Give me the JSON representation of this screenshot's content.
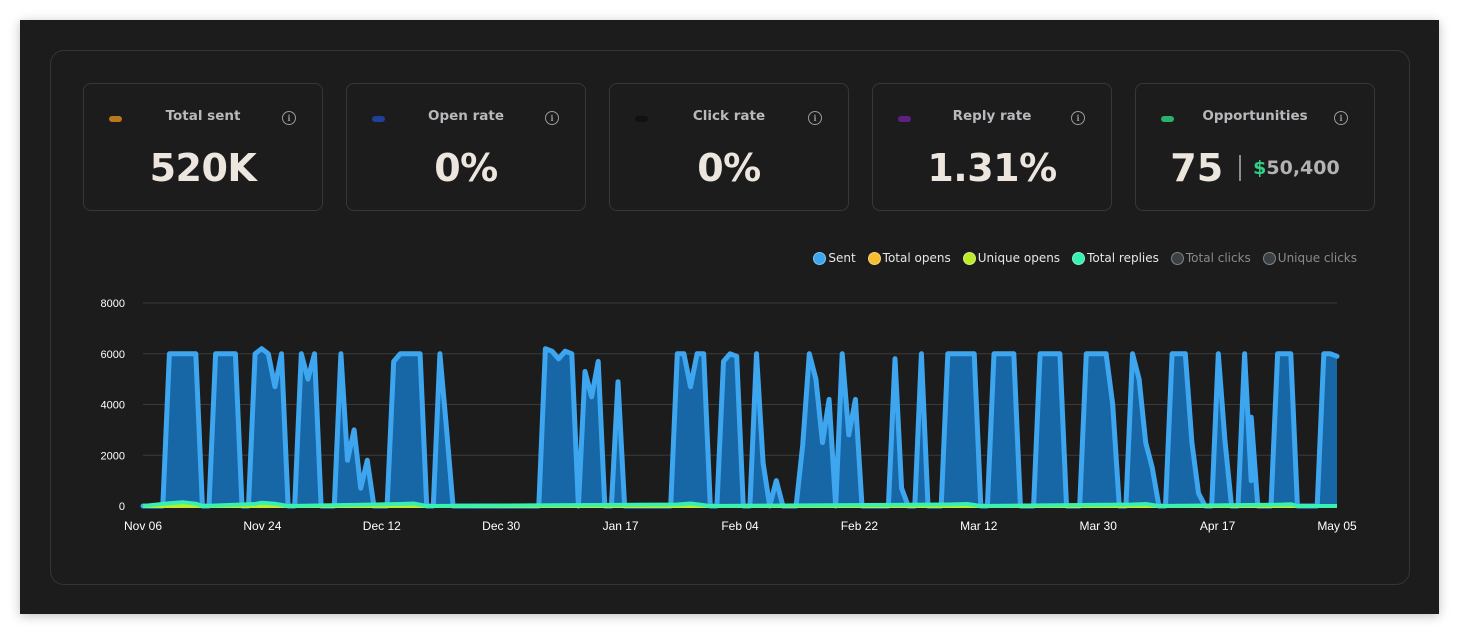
{
  "stats": [
    {
      "label": "Total sent",
      "value": "520K",
      "color": "#b8781c"
    },
    {
      "label": "Open rate",
      "value": "0%",
      "color": "#1e3f9a"
    },
    {
      "label": "Click rate",
      "value": "0%",
      "color": "#111111"
    },
    {
      "label": "Reply rate",
      "value": "1.31%",
      "color": "#5b2081"
    }
  ],
  "opportunities": {
    "label": "Opportunities",
    "count": "75",
    "dollar": "$",
    "amount": "50,400",
    "color": "#2bb16a"
  },
  "info_icon": "info-icon",
  "legend": [
    {
      "label": "Sent",
      "color": "#3ea6ee",
      "active": true
    },
    {
      "label": "Total opens",
      "color": "#f6bd2f",
      "active": true
    },
    {
      "label": "Unique opens",
      "color": "#bdeb2c",
      "active": true
    },
    {
      "label": "Total replies",
      "color": "#38f0b0",
      "active": true
    },
    {
      "label": "Total clicks",
      "color": "#3a4144",
      "active": false
    },
    {
      "label": "Unique clicks",
      "color": "#3a4144",
      "active": false
    }
  ],
  "chart_data": {
    "type": "area",
    "ylim": [
      0,
      8000
    ],
    "yticks": [
      0,
      2000,
      4000,
      6000,
      8000
    ],
    "x_range": [
      "2023-11-06",
      "2024-05-05"
    ],
    "xtick_labels": [
      "Nov 06",
      "Nov 24",
      "Dec 12",
      "Dec 30",
      "Jan 17",
      "Feb 04",
      "Feb 22",
      "Mar 12",
      "Mar 30",
      "Apr 17",
      "May 05"
    ],
    "grid": true,
    "legend_position": "top-right",
    "series": [
      {
        "name": "Sent",
        "color": "#3ea6ee",
        "points": [
          [
            "2023-11-06",
            0
          ],
          [
            "2023-11-09",
            0
          ],
          [
            "2023-11-10",
            6000
          ],
          [
            "2023-11-14",
            6000
          ],
          [
            "2023-11-15",
            0
          ],
          [
            "2023-11-16",
            0
          ],
          [
            "2023-11-17",
            6000
          ],
          [
            "2023-11-20",
            6000
          ],
          [
            "2023-11-21",
            0
          ],
          [
            "2023-11-22",
            0
          ],
          [
            "2023-11-23",
            6000
          ],
          [
            "2023-11-24",
            6200
          ],
          [
            "2023-11-25",
            6000
          ],
          [
            "2023-11-26",
            4700
          ],
          [
            "2023-11-27",
            6000
          ],
          [
            "2023-11-28",
            0
          ],
          [
            "2023-11-29",
            0
          ],
          [
            "2023-11-30",
            6000
          ],
          [
            "2023-12-01",
            5000
          ],
          [
            "2023-12-02",
            6000
          ],
          [
            "2023-12-03",
            0
          ],
          [
            "2023-12-05",
            0
          ],
          [
            "2023-12-06",
            6000
          ],
          [
            "2023-12-07",
            1800
          ],
          [
            "2023-12-08",
            3000
          ],
          [
            "2023-12-09",
            700
          ],
          [
            "2023-12-10",
            1800
          ],
          [
            "2023-12-11",
            0
          ],
          [
            "2023-12-13",
            0
          ],
          [
            "2023-12-14",
            5700
          ],
          [
            "2023-12-15",
            6000
          ],
          [
            "2023-12-18",
            6000
          ],
          [
            "2023-12-19",
            0
          ],
          [
            "2023-12-20",
            0
          ],
          [
            "2023-12-21",
            6000
          ],
          [
            "2023-12-22",
            3100
          ],
          [
            "2023-12-23",
            0
          ],
          [
            "2024-01-05",
            0
          ],
          [
            "2024-01-06",
            6200
          ],
          [
            "2024-01-07",
            6100
          ],
          [
            "2024-01-08",
            5800
          ],
          [
            "2024-01-09",
            6100
          ],
          [
            "2024-01-10",
            6000
          ],
          [
            "2024-01-11",
            0
          ],
          [
            "2024-01-11",
            0
          ],
          [
            "2024-01-12",
            5300
          ],
          [
            "2024-01-13",
            4300
          ],
          [
            "2024-01-14",
            5700
          ],
          [
            "2024-01-15",
            0
          ],
          [
            "2024-01-16",
            0
          ],
          [
            "2024-01-17",
            4900
          ],
          [
            "2024-01-18",
            0
          ],
          [
            "2024-01-25",
            0
          ],
          [
            "2024-01-26",
            6000
          ],
          [
            "2024-01-27",
            6000
          ],
          [
            "2024-01-28",
            4700
          ],
          [
            "2024-01-29",
            6000
          ],
          [
            "2024-01-30",
            6000
          ],
          [
            "2024-01-31",
            0
          ],
          [
            "2024-02-01",
            0
          ],
          [
            "2024-02-02",
            5700
          ],
          [
            "2024-02-03",
            6000
          ],
          [
            "2024-02-04",
            5900
          ],
          [
            "2024-02-05",
            0
          ],
          [
            "2024-02-06",
            0
          ],
          [
            "2024-02-07",
            6000
          ],
          [
            "2024-02-08",
            1700
          ],
          [
            "2024-02-09",
            0
          ],
          [
            "2024-02-10",
            1000
          ],
          [
            "2024-02-11",
            0
          ],
          [
            "2024-02-13",
            0
          ],
          [
            "2024-02-14",
            2400
          ],
          [
            "2024-02-15",
            6000
          ],
          [
            "2024-02-16",
            5000
          ],
          [
            "2024-02-17",
            2500
          ],
          [
            "2024-02-18",
            4200
          ],
          [
            "2024-02-19",
            0
          ],
          [
            "2024-02-19",
            0
          ],
          [
            "2024-02-20",
            6000
          ],
          [
            "2024-02-21",
            2800
          ],
          [
            "2024-02-22",
            4200
          ],
          [
            "2024-02-23",
            0
          ],
          [
            "2024-02-27",
            0
          ],
          [
            "2024-02-28",
            5800
          ],
          [
            "2024-02-29",
            700
          ],
          [
            "2024-03-01",
            0
          ],
          [
            "2024-03-02",
            0
          ],
          [
            "2024-03-03",
            6000
          ],
          [
            "2024-03-04",
            0
          ],
          [
            "2024-03-06",
            0
          ],
          [
            "2024-03-07",
            6000
          ],
          [
            "2024-03-11",
            6000
          ],
          [
            "2024-03-12",
            0
          ],
          [
            "2024-03-13",
            0
          ],
          [
            "2024-03-14",
            6000
          ],
          [
            "2024-03-17",
            6000
          ],
          [
            "2024-03-18",
            0
          ],
          [
            "2024-03-20",
            0
          ],
          [
            "2024-03-21",
            6000
          ],
          [
            "2024-03-24",
            6000
          ],
          [
            "2024-03-25",
            0
          ],
          [
            "2024-03-27",
            0
          ],
          [
            "2024-03-28",
            6000
          ],
          [
            "2024-03-31",
            6000
          ],
          [
            "2024-04-01",
            4000
          ],
          [
            "2024-04-02",
            0
          ],
          [
            "2024-04-03",
            0
          ],
          [
            "2024-04-04",
            6000
          ],
          [
            "2024-04-05",
            5000
          ],
          [
            "2024-04-06",
            2500
          ],
          [
            "2024-04-07",
            1500
          ],
          [
            "2024-04-08",
            0
          ],
          [
            "2024-04-09",
            0
          ],
          [
            "2024-04-10",
            6000
          ],
          [
            "2024-04-12",
            6000
          ],
          [
            "2024-04-13",
            2500
          ],
          [
            "2024-04-14",
            500
          ],
          [
            "2024-04-15",
            0
          ],
          [
            "2024-04-16",
            0
          ],
          [
            "2024-04-17",
            6000
          ],
          [
            "2024-04-18",
            2600
          ],
          [
            "2024-04-19",
            0
          ],
          [
            "2024-04-20",
            0
          ],
          [
            "2024-04-21",
            6000
          ],
          [
            "2024-04-22",
            1000
          ],
          [
            "2024-04-22",
            3500
          ],
          [
            "2024-04-23",
            0
          ],
          [
            "2024-04-25",
            0
          ],
          [
            "2024-04-26",
            6000
          ],
          [
            "2024-04-28",
            6000
          ],
          [
            "2024-04-29",
            0
          ],
          [
            "2024-05-02",
            0
          ],
          [
            "2024-05-03",
            6000
          ],
          [
            "2024-05-04",
            6000
          ],
          [
            "2024-05-05",
            5900
          ]
        ]
      },
      {
        "name": "Total opens",
        "color": "#f6bd2f",
        "points": [
          [
            "2023-11-06",
            0
          ],
          [
            "2024-05-05",
            0
          ]
        ]
      },
      {
        "name": "Unique opens",
        "color": "#bdeb2c",
        "points": [
          [
            "2023-11-06",
            0
          ],
          [
            "2024-05-05",
            0
          ]
        ]
      },
      {
        "name": "Total replies",
        "color": "#38f0b0",
        "points": [
          [
            "2023-11-06",
            0
          ],
          [
            "2023-11-10",
            110
          ],
          [
            "2023-11-12",
            150
          ],
          [
            "2023-11-14",
            90
          ],
          [
            "2023-11-15",
            0
          ],
          [
            "2023-11-23",
            80
          ],
          [
            "2023-11-24",
            130
          ],
          [
            "2023-11-26",
            90
          ],
          [
            "2023-11-28",
            0
          ],
          [
            "2023-12-15",
            80
          ],
          [
            "2023-12-17",
            100
          ],
          [
            "2023-12-19",
            0
          ],
          [
            "2024-01-26",
            60
          ],
          [
            "2024-01-28",
            100
          ],
          [
            "2024-01-31",
            0
          ],
          [
            "2024-03-07",
            60
          ],
          [
            "2024-03-10",
            80
          ],
          [
            "2024-03-12",
            0
          ],
          [
            "2024-04-04",
            60
          ],
          [
            "2024-04-06",
            80
          ],
          [
            "2024-04-08",
            0
          ],
          [
            "2024-04-26",
            50
          ],
          [
            "2024-04-28",
            70
          ],
          [
            "2024-04-29",
            0
          ],
          [
            "2024-05-05",
            0
          ]
        ]
      }
    ]
  }
}
